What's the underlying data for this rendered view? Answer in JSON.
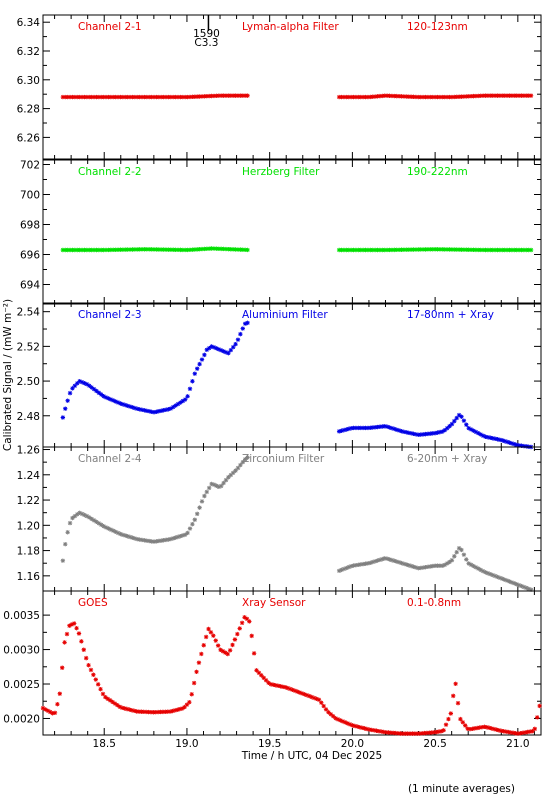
{
  "footnote": "(1 minute averages)",
  "xaxis": {
    "label": "Time / h UTC, 04 Dec 2025",
    "range": [
      18.13,
      21.14
    ],
    "ticks": [
      18.5,
      19.0,
      19.5,
      20.0,
      20.5,
      21.0
    ],
    "tick_labels": [
      "18.5",
      "19.0",
      "19.5",
      "20.0",
      "20.5",
      "21.0"
    ]
  },
  "yaxis_label": "Calibrated Signal / (mW m⁻²)",
  "flare_marker": {
    "time": 19.13,
    "label_top": "1590",
    "label_bottom": "C3.3"
  },
  "chart_data": [
    {
      "type": "scatter",
      "name": "Channel 2-1",
      "filter": "Lyman-alpha Filter",
      "band": "120-123nm",
      "color": "#e60000",
      "ylim": [
        6.245,
        6.345
      ],
      "yticks": [
        6.26,
        6.28,
        6.3,
        6.32,
        6.34
      ],
      "ytick_labels": [
        "6.26",
        "6.28",
        "6.30",
        "6.32",
        "6.34"
      ],
      "segments": [
        {
          "x": [
            18.25,
            18.5,
            18.75,
            19.0,
            19.2,
            19.38
          ],
          "y": [
            6.288,
            6.288,
            6.288,
            6.288,
            6.289,
            6.289
          ]
        },
        {
          "x": [
            19.92,
            20.1,
            20.2,
            20.4,
            20.6,
            20.8,
            21.0,
            21.08
          ],
          "y": [
            6.288,
            6.288,
            6.289,
            6.288,
            6.288,
            6.289,
            6.289,
            6.289
          ]
        }
      ]
    },
    {
      "type": "scatter",
      "name": "Channel 2-2",
      "filter": "Herzberg Filter",
      "band": "190-222nm",
      "color": "#00e000",
      "ylim": [
        692.7,
        702.3
      ],
      "yticks": [
        694,
        696,
        698,
        700,
        702
      ],
      "ytick_labels": [
        "694",
        "696",
        "698",
        "700",
        "702"
      ],
      "segments": [
        {
          "x": [
            18.25,
            18.5,
            18.75,
            19.0,
            19.15,
            19.38
          ],
          "y": [
            696.3,
            696.3,
            696.35,
            696.3,
            696.4,
            696.3
          ]
        },
        {
          "x": [
            19.92,
            20.2,
            20.5,
            20.8,
            21.08
          ],
          "y": [
            696.3,
            696.3,
            696.35,
            696.3,
            696.3
          ]
        }
      ]
    },
    {
      "type": "scatter",
      "name": "Channel 2-3",
      "filter": "Aluminium Filter",
      "band": "17-80nm + Xray",
      "color": "#0000e6",
      "ylim": [
        2.462,
        2.545
      ],
      "yticks": [
        2.48,
        2.5,
        2.52,
        2.54
      ],
      "ytick_labels": [
        "2.48",
        "2.50",
        "2.52",
        "2.54"
      ],
      "segments": [
        {
          "x": [
            18.25,
            18.27,
            18.3,
            18.35,
            18.4,
            18.5,
            18.6,
            18.7,
            18.8,
            18.9,
            18.95,
            19.0,
            19.05,
            19.1,
            19.12,
            19.15,
            19.2,
            19.25,
            19.3,
            19.35,
            19.38
          ],
          "y": [
            2.479,
            2.486,
            2.495,
            2.5,
            2.498,
            2.491,
            2.487,
            2.484,
            2.482,
            2.484,
            2.487,
            2.49,
            2.505,
            2.514,
            2.518,
            2.52,
            2.518,
            2.516,
            2.522,
            2.533,
            2.534
          ]
        },
        {
          "x": [
            19.92,
            20.0,
            20.1,
            20.2,
            20.3,
            20.4,
            20.5,
            20.55,
            20.6,
            20.65,
            20.7,
            20.8,
            20.9,
            21.0,
            21.08
          ],
          "y": [
            2.471,
            2.473,
            2.473,
            2.474,
            2.471,
            2.469,
            2.47,
            2.471,
            2.475,
            2.481,
            2.473,
            2.468,
            2.466,
            2.463,
            2.462
          ]
        }
      ]
    },
    {
      "type": "scatter",
      "name": "Channel 2-4",
      "filter": "Zirconium Filter",
      "band": "6-20nm + Xray",
      "color": "#808080",
      "ylim": [
        1.148,
        1.262
      ],
      "yticks": [
        1.16,
        1.18,
        1.2,
        1.22,
        1.24,
        1.26
      ],
      "ytick_labels": [
        "1.16",
        "1.18",
        "1.20",
        "1.22",
        "1.24",
        "1.26"
      ],
      "segments": [
        {
          "x": [
            18.25,
            18.27,
            18.3,
            18.35,
            18.4,
            18.5,
            18.6,
            18.7,
            18.8,
            18.9,
            18.95,
            19.0,
            19.05,
            19.1,
            19.15,
            19.2,
            19.25,
            19.3,
            19.35,
            19.38
          ],
          "y": [
            1.172,
            1.19,
            1.205,
            1.21,
            1.207,
            1.199,
            1.193,
            1.189,
            1.187,
            1.189,
            1.191,
            1.193,
            1.205,
            1.222,
            1.233,
            1.23,
            1.238,
            1.244,
            1.252,
            1.255
          ]
        },
        {
          "x": [
            19.92,
            20.0,
            20.1,
            20.2,
            20.3,
            20.4,
            20.5,
            20.55,
            20.6,
            20.65,
            20.7,
            20.8,
            20.9,
            21.0,
            21.08
          ],
          "y": [
            1.164,
            1.168,
            1.17,
            1.174,
            1.17,
            1.166,
            1.168,
            1.168,
            1.172,
            1.183,
            1.17,
            1.163,
            1.158,
            1.153,
            1.149
          ]
        }
      ]
    },
    {
      "type": "scatter",
      "name": "GOES",
      "filter": "Xray Sensor",
      "band": "0.1-0.8nm",
      "color": "#e60000",
      "ylim": [
        0.00176,
        0.00385
      ],
      "yticks": [
        0.002,
        0.0025,
        0.003,
        0.0035
      ],
      "ytick_labels": [
        "0.0020",
        "0.0025",
        "0.0030",
        "0.0035"
      ],
      "segments": [
        {
          "x": [
            18.13,
            18.2,
            18.23,
            18.26,
            18.29,
            18.32,
            18.35,
            18.4,
            18.5,
            18.6,
            18.7,
            18.8,
            18.9,
            18.98,
            19.02,
            19.06,
            19.1,
            19.13,
            19.16,
            19.2,
            19.25,
            19.3,
            19.35,
            19.38,
            19.42,
            19.5,
            19.6,
            19.7,
            19.8,
            19.85,
            19.9,
            20.0,
            20.1,
            20.2,
            20.3,
            20.4,
            20.5,
            20.55,
            20.6,
            20.62,
            20.65,
            20.7,
            20.8,
            20.9,
            21.0,
            21.1,
            21.14
          ],
          "y": [
            0.00215,
            0.00206,
            0.00232,
            0.0031,
            0.00335,
            0.00338,
            0.00322,
            0.0028,
            0.00232,
            0.00216,
            0.0021,
            0.00209,
            0.0021,
            0.00215,
            0.00225,
            0.0027,
            0.00305,
            0.0033,
            0.0032,
            0.003,
            0.00293,
            0.0032,
            0.00348,
            0.0034,
            0.0027,
            0.0025,
            0.00245,
            0.00236,
            0.00227,
            0.0021,
            0.002,
            0.0019,
            0.00184,
            0.0018,
            0.00178,
            0.00178,
            0.0018,
            0.00182,
            0.0021,
            0.00258,
            0.002,
            0.00184,
            0.00188,
            0.00182,
            0.00178,
            0.00182,
            0.00228
          ]
        }
      ]
    }
  ]
}
